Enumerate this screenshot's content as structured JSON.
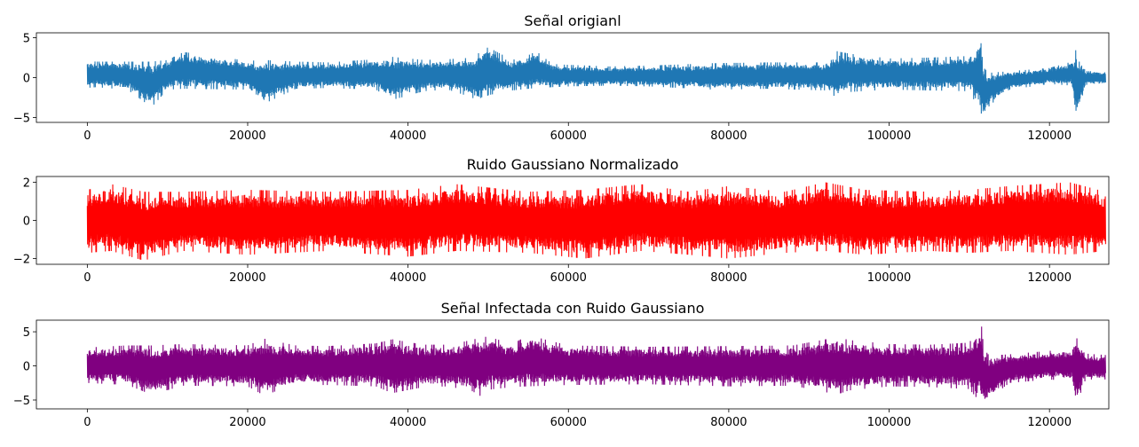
{
  "chart_data": [
    {
      "type": "line",
      "title": "Señal origianl",
      "xlabel": "",
      "ylabel": "",
      "xlim": [
        -6350,
        127400
      ],
      "ylim": [
        -5.6,
        5.6
      ],
      "xticks": [
        0,
        20000,
        40000,
        60000,
        80000,
        100000,
        120000
      ],
      "xtick_labels": [
        "0",
        "20000",
        "40000",
        "60000",
        "80000",
        "100000",
        "120000"
      ],
      "yticks": [
        5,
        0,
        -5
      ],
      "ytick_labels": [
        "5",
        "0",
        "−5"
      ],
      "grid": false,
      "legend": "none",
      "x_range": [
        0,
        127000
      ],
      "series": [
        {
          "color": "#1f77b4",
          "envelope": {
            "x": [
              0,
              1000,
              5000,
              8000,
              10000,
              12000,
              20000,
              22000,
              26000,
              30000,
              36000,
              38000,
              42000,
              45000,
              48000,
              49000,
              50000,
              53000,
              55000,
              56000,
              58000,
              60000,
              65000,
              70000,
              78000,
              85000,
              92000,
              93500,
              95000,
              100000,
              105000,
              110000,
              111500,
              111800,
              112500,
              115000,
              120000,
              122800,
              123300,
              124500,
              127000
            ],
            "upper": [
              2.1,
              2.0,
              2.0,
              2.0,
              2.2,
              3.2,
              2.1,
              2.2,
              2.0,
              1.9,
              2.3,
              2.6,
              2.2,
              2.3,
              2.5,
              3.2,
              3.8,
              2.2,
              2.8,
              3.3,
              1.7,
              1.6,
              1.4,
              1.5,
              1.8,
              1.9,
              1.9,
              3.3,
              3.0,
              2.4,
              2.5,
              2.7,
              5.1,
              1.2,
              0.6,
              0.8,
              1.2,
              2.0,
              3.5,
              0.8,
              0.8
            ],
            "lower": [
              -1.3,
              -1.2,
              -1.5,
              -3.7,
              -1.5,
              -1.4,
              -1.5,
              -3.3,
              -1.4,
              -1.3,
              -1.5,
              -2.8,
              -1.7,
              -1.5,
              -2.5,
              -3.2,
              -2.2,
              -1.6,
              -1.4,
              -1.3,
              -1.2,
              -1.1,
              -1.0,
              -1.1,
              -1.5,
              -1.4,
              -1.6,
              -2.5,
              -1.8,
              -1.5,
              -1.6,
              -1.7,
              -4.5,
              -5.2,
              -3.5,
              -1.5,
              -0.8,
              -1.0,
              -5.1,
              -0.9,
              -0.9
            ]
          }
        }
      ]
    },
    {
      "type": "line",
      "title": "Ruido Gaussiano Normalizado",
      "xlabel": "",
      "ylabel": "",
      "xlim": [
        -6350,
        127400
      ],
      "ylim": [
        -2.3,
        2.3
      ],
      "xticks": [
        0,
        20000,
        40000,
        60000,
        80000,
        100000,
        120000
      ],
      "xtick_labels": [
        "0",
        "20000",
        "40000",
        "60000",
        "80000",
        "100000",
        "120000"
      ],
      "yticks": [
        2,
        0,
        -2
      ],
      "ytick_labels": [
        "2",
        "0",
        "−2"
      ],
      "grid": false,
      "legend": "none",
      "x_range": [
        0,
        127000
      ],
      "series": [
        {
          "color": "#ff0000",
          "envelope": {
            "x": [
              0,
              3000,
              7000,
              12000,
              20000,
              30000,
              40000,
              46000,
              55000,
              62000,
              69000,
              75000,
              80000,
              87000,
              92000,
              97000,
              105000,
              110000,
              115000,
              122500,
              127000
            ],
            "upper": [
              1.6,
              1.9,
              1.5,
              1.5,
              1.6,
              1.5,
              1.6,
              1.9,
              1.5,
              1.6,
              1.9,
              1.5,
              1.8,
              1.5,
              2.0,
              1.6,
              1.5,
              1.6,
              1.8,
              2.0,
              1.5
            ],
            "lower": [
              -1.7,
              -1.6,
              -2.1,
              -1.6,
              -1.8,
              -1.6,
              -1.9,
              -1.6,
              -1.7,
              -2.0,
              -1.6,
              -1.8,
              -2.0,
              -1.7,
              -1.6,
              -1.8,
              -1.6,
              -1.7,
              -1.6,
              -1.8,
              -1.6
            ]
          }
        }
      ]
    },
    {
      "type": "line",
      "title": "Señal Infectada con Ruido Gaussiano",
      "xlabel": "",
      "ylabel": "",
      "xlim": [
        -6350,
        127400
      ],
      "ylim": [
        -6.3,
        6.7
      ],
      "xticks": [
        0,
        20000,
        40000,
        60000,
        80000,
        100000,
        120000
      ],
      "xtick_labels": [
        "0",
        "20000",
        "40000",
        "60000",
        "80000",
        "100000",
        "120000"
      ],
      "yticks": [
        5,
        0,
        -5
      ],
      "ytick_labels": [
        "5",
        "0",
        "−5"
      ],
      "grid": false,
      "legend": "none",
      "x_range": [
        0,
        127000
      ],
      "series": [
        {
          "color": "#800080",
          "envelope": {
            "x": [
              0,
              5000,
              8000,
              12000,
              20000,
              22000,
              26000,
              30000,
              36000,
              38000,
              42000,
              45000,
              48000,
              49000,
              50000,
              53000,
              55000,
              60000,
              70000,
              80000,
              88000,
              93500,
              95000,
              100000,
              105000,
              110000,
              111500,
              111800,
              112500,
              115000,
              120000,
              122800,
              123300,
              124500,
              127000
            ],
            "upper": [
              2.7,
              3.0,
              3.0,
              3.2,
              3.0,
              4.0,
              3.0,
              2.9,
              3.3,
              3.9,
              3.1,
              3.1,
              3.8,
              4.2,
              4.3,
              3.2,
              4.5,
              3.0,
              2.8,
              2.9,
              3.0,
              4.2,
              3.8,
              3.2,
              3.1,
              3.4,
              6.2,
              2.5,
              1.5,
              1.7,
              2.2,
              2.5,
              5.2,
              1.8,
              1.6
            ],
            "lower": [
              -2.5,
              -2.8,
              -4.2,
              -2.9,
              -3.0,
              -4.3,
              -2.8,
              -2.8,
              -3.0,
              -4.0,
              -3.1,
              -3.0,
              -3.7,
              -4.4,
              -3.5,
              -3.1,
              -3.0,
              -2.8,
              -2.7,
              -3.0,
              -2.9,
              -4.2,
              -3.6,
              -3.0,
              -3.1,
              -3.4,
              -5.5,
              -5.8,
              -4.8,
              -2.5,
              -2.0,
              -2.2,
              -5.9,
              -2.0,
              -2.0
            ]
          }
        }
      ]
    }
  ]
}
